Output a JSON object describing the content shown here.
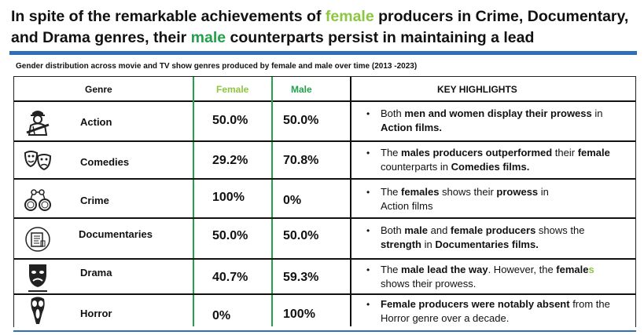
{
  "title": {
    "part1": "In spite of the remarkable achievements of ",
    "female": "female",
    "part2": " producers in Crime, Documentary,",
    "part3": "and Drama genres, their ",
    "male": "male",
    "part4": " counterparts persist in maintaining a lead"
  },
  "subtitle": "Gender distribution across movie and TV show genres produced by female and male over time  (2013 -2023)",
  "table": {
    "headers": {
      "genre": "Genre",
      "female": "Female",
      "male": "Male",
      "highlights": "KEY HIGHLIGHTS"
    },
    "rows": [
      {
        "genre": "Action",
        "icon": "soldier-icon",
        "female": "50.0%",
        "male": "50.0%",
        "note": {
          "a": "Both ",
          "b": "men and women display their prowess",
          "c": " in ",
          "d": "Action films."
        }
      },
      {
        "genre": "Comedies",
        "icon": "comedy-masks-icon",
        "female": "29.2%",
        "male": "70.8%",
        "note": {
          "a": "The ",
          "b": "males producers outperformed",
          "c": " their ",
          "d": "female",
          "e": " counterparts in ",
          "f": "Comedies films."
        }
      },
      {
        "genre": "Crime",
        "icon": "handcuffs-icon",
        "female": "100%",
        "male": "0%",
        "note": {
          "a": "The ",
          "b": "females",
          "c": " shows their ",
          "d": "prowess",
          "e": " in ",
          "f": "Action films"
        }
      },
      {
        "genre": "Documentaries",
        "icon": "document-icon",
        "female": "50.0%",
        "male": "50.0%",
        "note": {
          "a": "Both ",
          "b": "male",
          "c": " and ",
          "d": "female producers",
          "e": " shows the ",
          "f": "strength",
          "g": " in ",
          "h": "Documentaries films."
        }
      },
      {
        "genre": "Drama",
        "icon": "drama-mask-icon",
        "female": "40.7%",
        "male": "59.3%",
        "note": {
          "a": "The ",
          "b": "male lead the way",
          "c": ". However, the ",
          "d": "female",
          "e": "s",
          "f": " shows their prowess."
        }
      },
      {
        "genre": "Horror",
        "icon": "scream-mask-icon",
        "female": "0%",
        "male": "100%",
        "note": {
          "a": "Female producers were notably absent",
          "b": " from the Horror genre over a decade."
        }
      }
    ]
  }
}
